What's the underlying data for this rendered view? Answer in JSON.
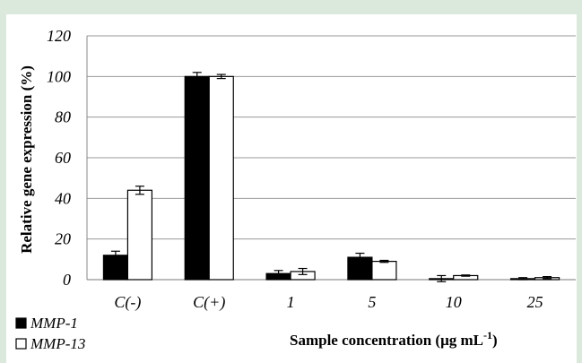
{
  "chart_data": {
    "type": "bar",
    "title": "",
    "ylabel": "Relative gene expression (%)",
    "xlabel_main": "Sample concentration (μg mL",
    "xlabel_sup": "-1",
    "xlabel_close": ")",
    "ylim": [
      0,
      120
    ],
    "yticks": [
      0,
      20,
      40,
      60,
      80,
      100,
      120
    ],
    "grid": true,
    "legend_position": "bottom-left",
    "categories": [
      "C(-)",
      "C(+)",
      "1",
      "5",
      "10",
      "25"
    ],
    "series": [
      {
        "name": "MMP-1",
        "color": "#000000",
        "values": [
          12,
          100,
          3,
          11,
          0.5,
          0.5
        ],
        "errors": [
          2,
          2,
          1.5,
          2,
          1.5,
          0.5
        ]
      },
      {
        "name": "MMP-13",
        "color": "#ffffff",
        "values": [
          44,
          100,
          4,
          9,
          2,
          1
        ],
        "errors": [
          2,
          1,
          1.5,
          0.5,
          0.3,
          0.5
        ]
      }
    ]
  }
}
